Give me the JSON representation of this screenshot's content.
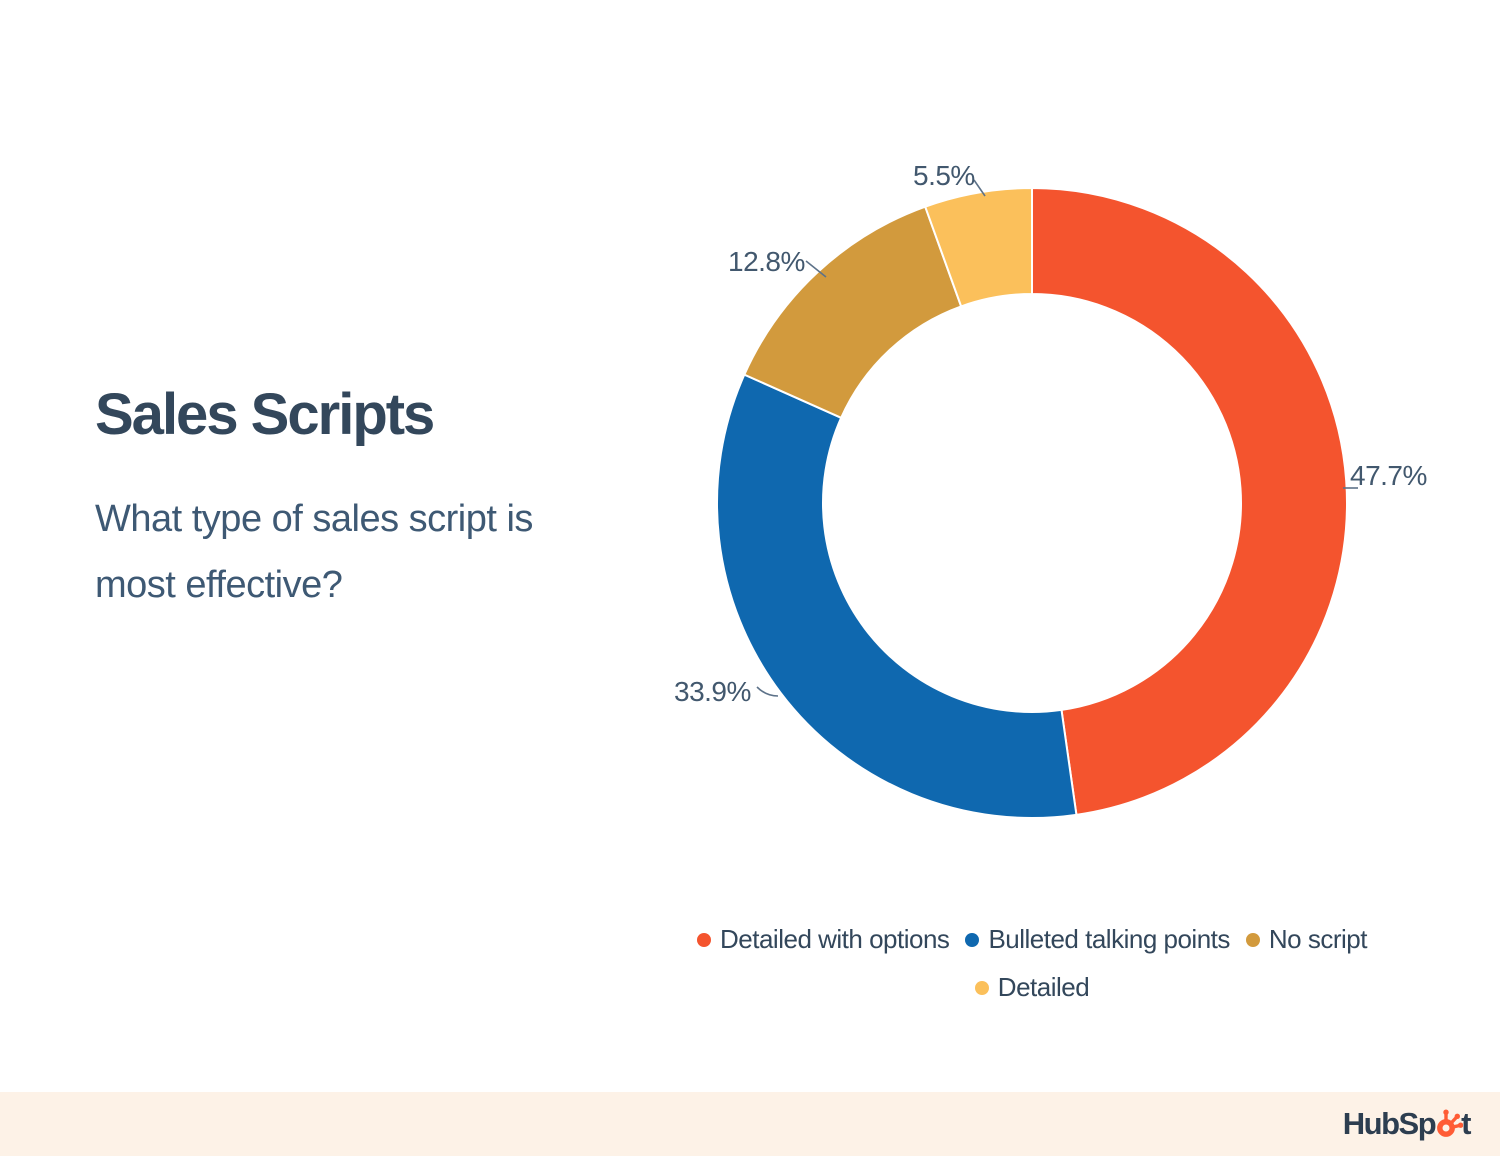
{
  "page": {
    "title": "Sales Scripts",
    "question": "What type of sales script is most effective?"
  },
  "chart_data": {
    "type": "pie",
    "variant": "donut",
    "title": "Sales Scripts",
    "subtitle": "What type of sales script is most effective?",
    "units": "percent",
    "start_angle": "12-oclock",
    "direction": "clockwise",
    "inner_radius_ratio": 0.663,
    "series": [
      {
        "label": "Detailed with options",
        "value": 47.7,
        "display": "47.7%",
        "color": "#F4542E"
      },
      {
        "label": "Bulleted talking points",
        "value": 33.9,
        "display": "33.9%",
        "color": "#0F68AF"
      },
      {
        "label": "No script",
        "value": 12.8,
        "display": "12.8%",
        "color": "#D29A3D"
      },
      {
        "label": "Detailed",
        "value": 5.5,
        "display": "5.5%",
        "color": "#FBC05B"
      }
    ],
    "legend_rows": [
      [
        0,
        1,
        2
      ],
      [
        3
      ]
    ],
    "legend_position": "bottom-center"
  },
  "footer": {
    "brand": "HubSpot",
    "band_color": "#FDF2E7",
    "sprocket_color": "#FF5C35",
    "logo_text_color": "#2D3E50"
  },
  "colors": {
    "background": "#FFFFFF",
    "title_text": "#33475B",
    "question_text": "#3E5974",
    "pct_label_text": "#42586E",
    "leader_line": "#5D7289",
    "slice_gap": "#FFFFFF"
  }
}
